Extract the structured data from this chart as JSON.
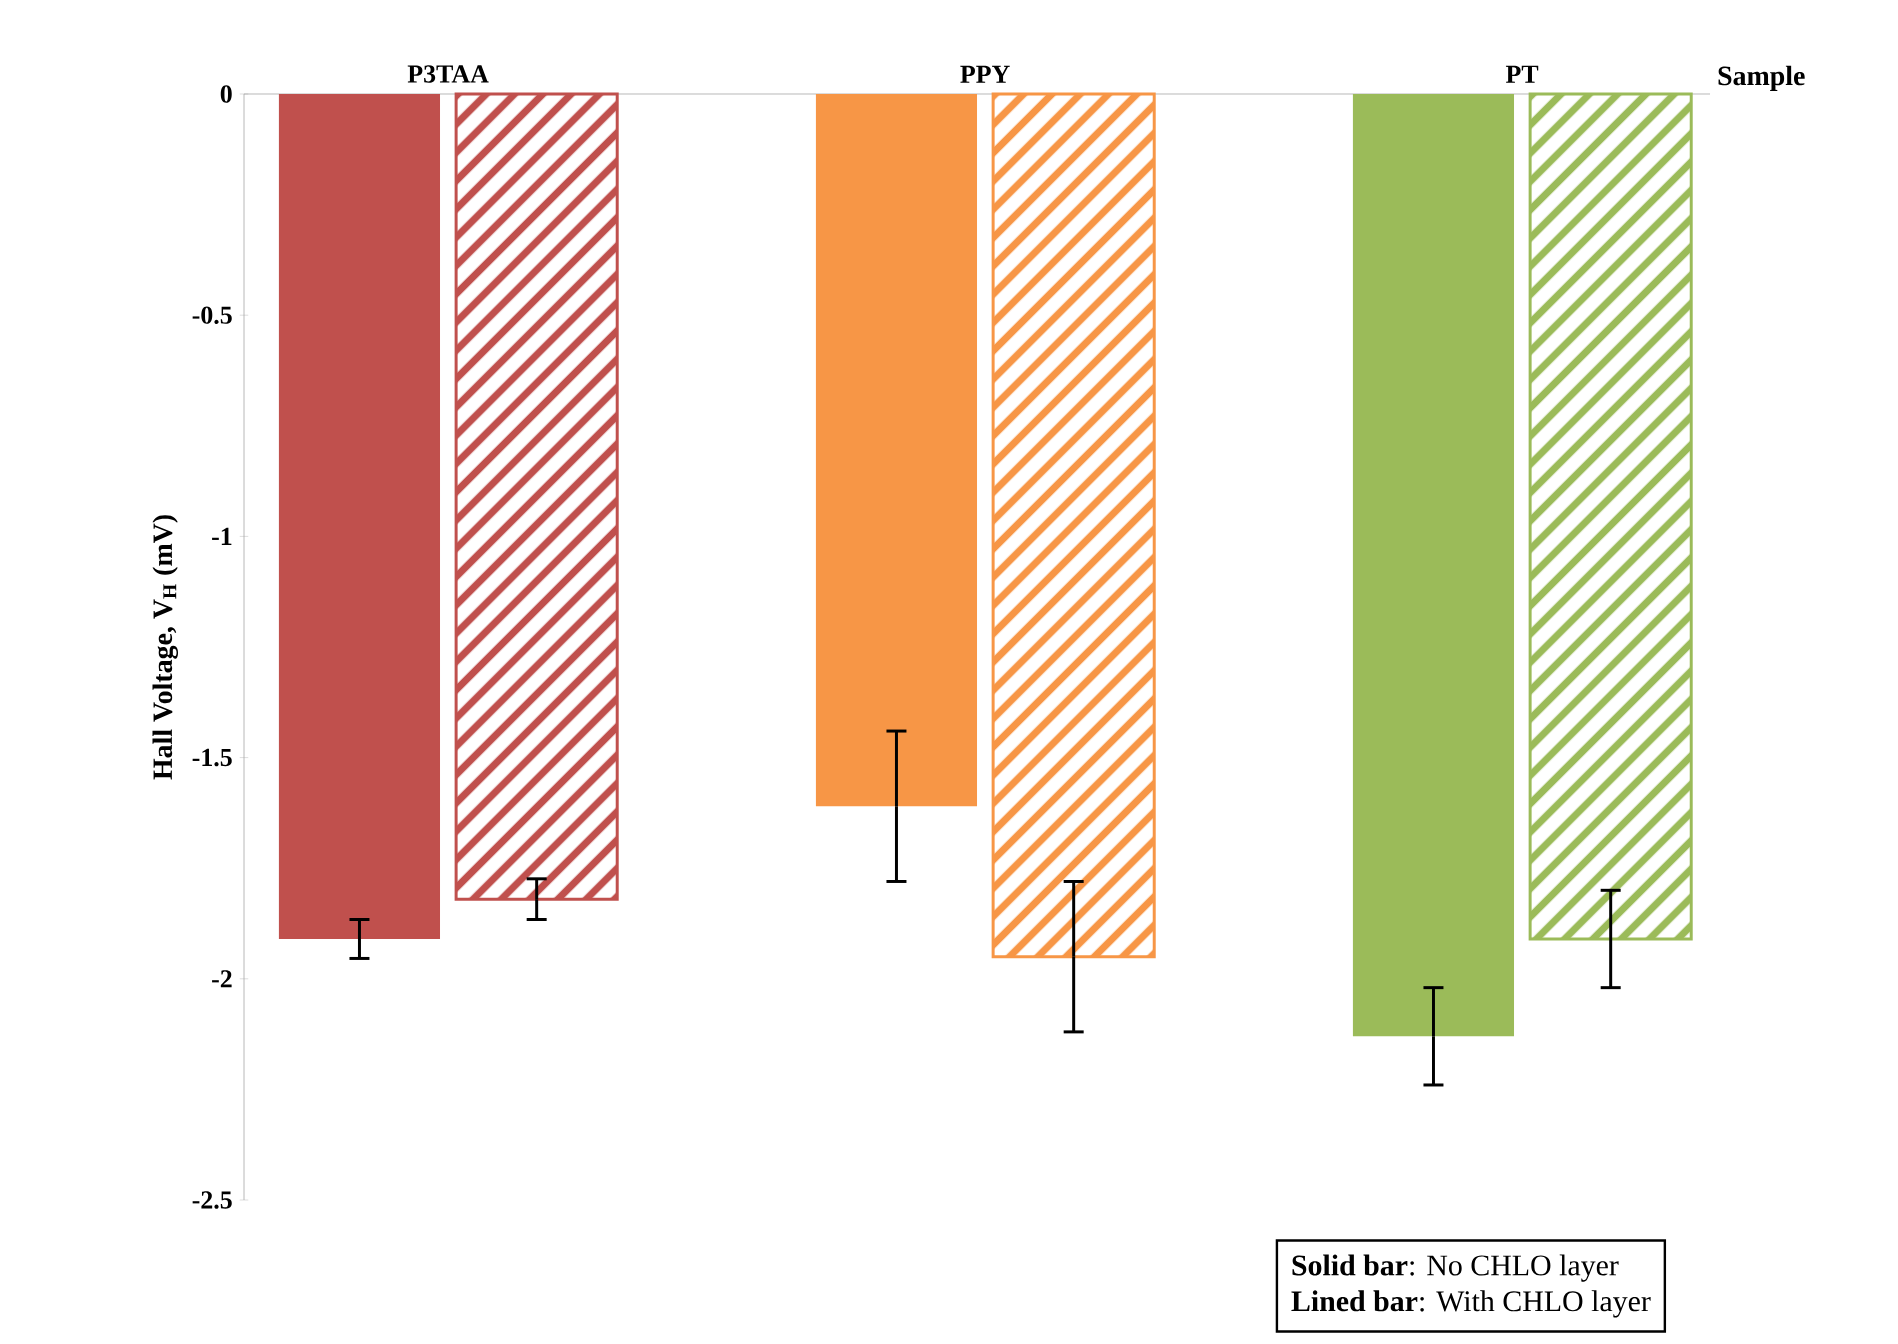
{
  "chart_data": {
    "type": "bar",
    "categories": [
      "P3TAA",
      "PPY",
      "PT"
    ],
    "xlabel": "Sample",
    "ylabel": "Hall Voltage, V$_{H}$ (mV)",
    "series": [
      {
        "colors": [
          "#c0504d",
          "#f79646",
          "#9bbb59"
        ],
        "values": [
          -1.91,
          -1.61,
          -2.13
        ],
        "errors": [
          0.044,
          0.17,
          0.11
        ]
      },
      {
        "colors": [
          "#c0504d",
          "#f79646",
          "#9bbb59"
        ],
        "values": [
          -1.82,
          -1.95,
          -1.91
        ],
        "errors": [
          0.046,
          0.17,
          0.11
        ]
      }
    ],
    "ylim": [
      -2.5,
      0
    ],
    "yticks": [
      -2.5,
      -2,
      -1.5,
      -1,
      -0.5,
      0
    ],
    "annotations": [
      "**Solid bar**: No CHLO layer",
      "**Lined bar**: With CHLO layer"
    ]
  }
}
